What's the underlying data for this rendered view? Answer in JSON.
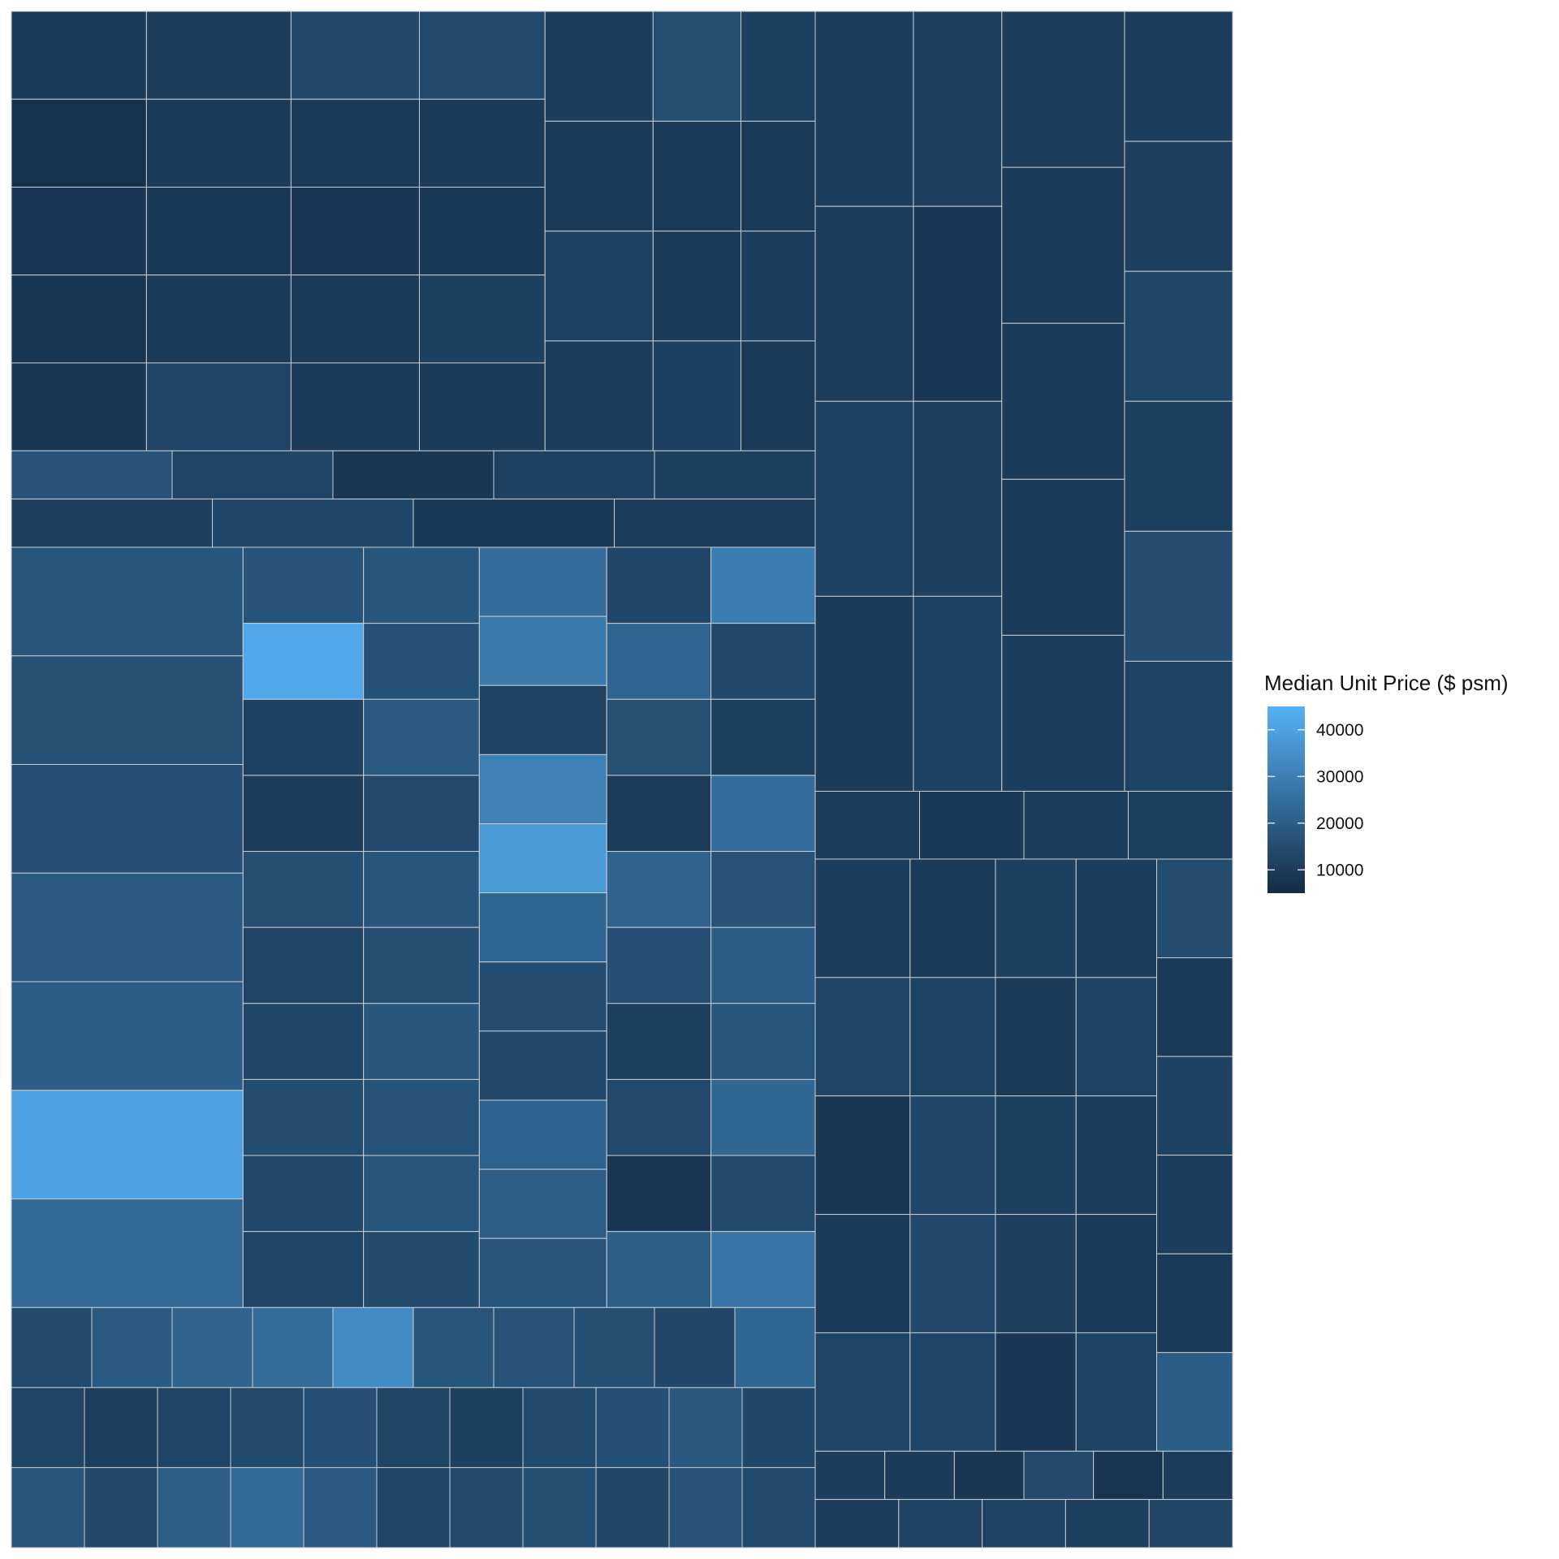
{
  "chart_data": {
    "type": "treemap",
    "title": "",
    "legend": {
      "title": "Median Unit Price ($ psm)",
      "placement": "right",
      "color_low": "#132B43",
      "color_high": "#56B1F7",
      "range": [
        5000,
        45000
      ],
      "ticks": [
        {
          "value": 40000,
          "label": "40000"
        },
        {
          "value": 30000,
          "label": "30000"
        },
        {
          "value": 20000,
          "label": "20000"
        },
        {
          "value": 10000,
          "label": "10000"
        }
      ]
    },
    "border_color": "#c8cdd2",
    "groups": [
      {
        "cols": [
          {
            "w": 1.0,
            "v": [
              9800,
              7200,
              9000,
              8200,
              8600
            ]
          },
          {
            "w": 1.07,
            "v": [
              10100,
              9400,
              9200,
              9600,
              12600
            ]
          },
          {
            "w": 0.95,
            "v": [
              13800,
              9600,
              9000,
              9400,
              9600
            ]
          },
          {
            "w": 0.93,
            "v": [
              14400,
              9600,
              9200,
              11300,
              9800
            ]
          },
          {
            "w": 0.8,
            "v": [
              10600,
              9600,
              11600,
              10600
            ]
          },
          {
            "w": 0.65,
            "v": [
              15400,
              9400,
              9800,
              11400
            ]
          },
          {
            "w": 0.55,
            "v": [
              11200,
              9400,
              10400,
              9400
            ]
          }
        ],
        "bottom": [
          {
            "w": 1.0,
            "v": [
              16800,
              13000,
              8600,
              11600,
              11200
            ]
          },
          {
            "w": 1.15,
            "v": [
              10800,
              13600,
              9300,
              10000
            ]
          }
        ]
      },
      {
        "cols": [
          {
            "w": 1.0,
            "v": [
              10600,
              10200,
              11600,
              9800
            ]
          },
          {
            "w": 0.9,
            "v": [
              10800,
              9000,
              10800,
              11600
            ]
          },
          {
            "w": 1.25,
            "v": [
              10200,
              9400,
              9800,
              9400,
              10600
            ]
          },
          {
            "w": 1.1,
            "v": [
              10600,
              10800,
              13000,
              11200,
              15200,
              11800
            ]
          }
        ],
        "bottom": [
          {
            "w": 1.0,
            "v": [
              10200,
              9200,
              10600,
              11000
            ]
          }
        ]
      },
      {
        "cols": [
          {
            "w": 1.0,
            "v": [
              17200,
              16200,
              15800,
              18800,
              20000,
              40000,
              23400
            ]
          },
          {
            "w": 0.52,
            "v": [
              16800,
              42000,
              11600,
              10200,
              15400,
              12400,
              13200,
              14800,
              13800,
              12600
            ]
          },
          {
            "w": 0.5,
            "v": [
              17400,
              16400,
              18800,
              14400,
              17400,
              15400,
              18200,
              16600,
              17200,
              14600
            ]
          },
          {
            "w": 0.55,
            "v": [
              24800,
              28600,
              12000,
              30800,
              38200,
              22600,
              15200,
              14000,
              21800,
              20200,
              17200
            ]
          },
          {
            "w": 0.45,
            "v": [
              13200,
              22400,
              16200,
              10200,
              21600,
              15800,
              11200,
              14400,
              8600,
              20400
            ]
          },
          {
            "w": 0.45,
            "v": [
              29400,
              14000,
              11000,
              24600,
              16600,
              20000,
              17200,
              22800,
              14200,
              26800
            ]
          }
        ],
        "bottom": [
          {
            "w": 1.0,
            "v": [
              14200,
              19400,
              21600,
              24200,
              33800,
              17600,
              16800,
              15400,
              13600,
              22600
            ]
          },
          {
            "w": 1.1,
            "v": [
              12400,
              10800,
              12600,
              14200,
              15800,
              12400,
              11200,
              14200,
              16000,
              18600,
              13400
            ]
          },
          {
            "w": 1.05,
            "v": [
              17600,
              13800,
              20200,
              23400,
              18800,
              13000,
              14600,
              15400,
              13400,
              17000,
              14200
            ]
          }
        ]
      },
      {
        "cols": [
          {
            "w": 1.0,
            "v": [
              10600,
              12400,
              8400,
              9800,
              12400
            ]
          },
          {
            "w": 0.9,
            "v": [
              9600,
              11800,
              13200,
              13800,
              12600
            ]
          },
          {
            "w": 0.85,
            "v": [
              11200,
              9600,
              11200,
              10800,
              9000
            ]
          },
          {
            "w": 0.85,
            "v": [
              10600,
              12000,
              10600,
              9800,
              11800
            ]
          },
          {
            "w": 0.8,
            "v": [
              14800,
              9600,
              11600,
              10400,
              9600,
              19800
            ]
          }
        ],
        "bottom": [
          {
            "w": 1.0,
            "v": [
              10600,
              9800,
              8600,
              14400,
              7800,
              10200
            ]
          },
          {
            "w": 1.0,
            "v": [
              10400,
              11800,
              12200,
              11000,
              12400
            ]
          }
        ]
      }
    ]
  }
}
